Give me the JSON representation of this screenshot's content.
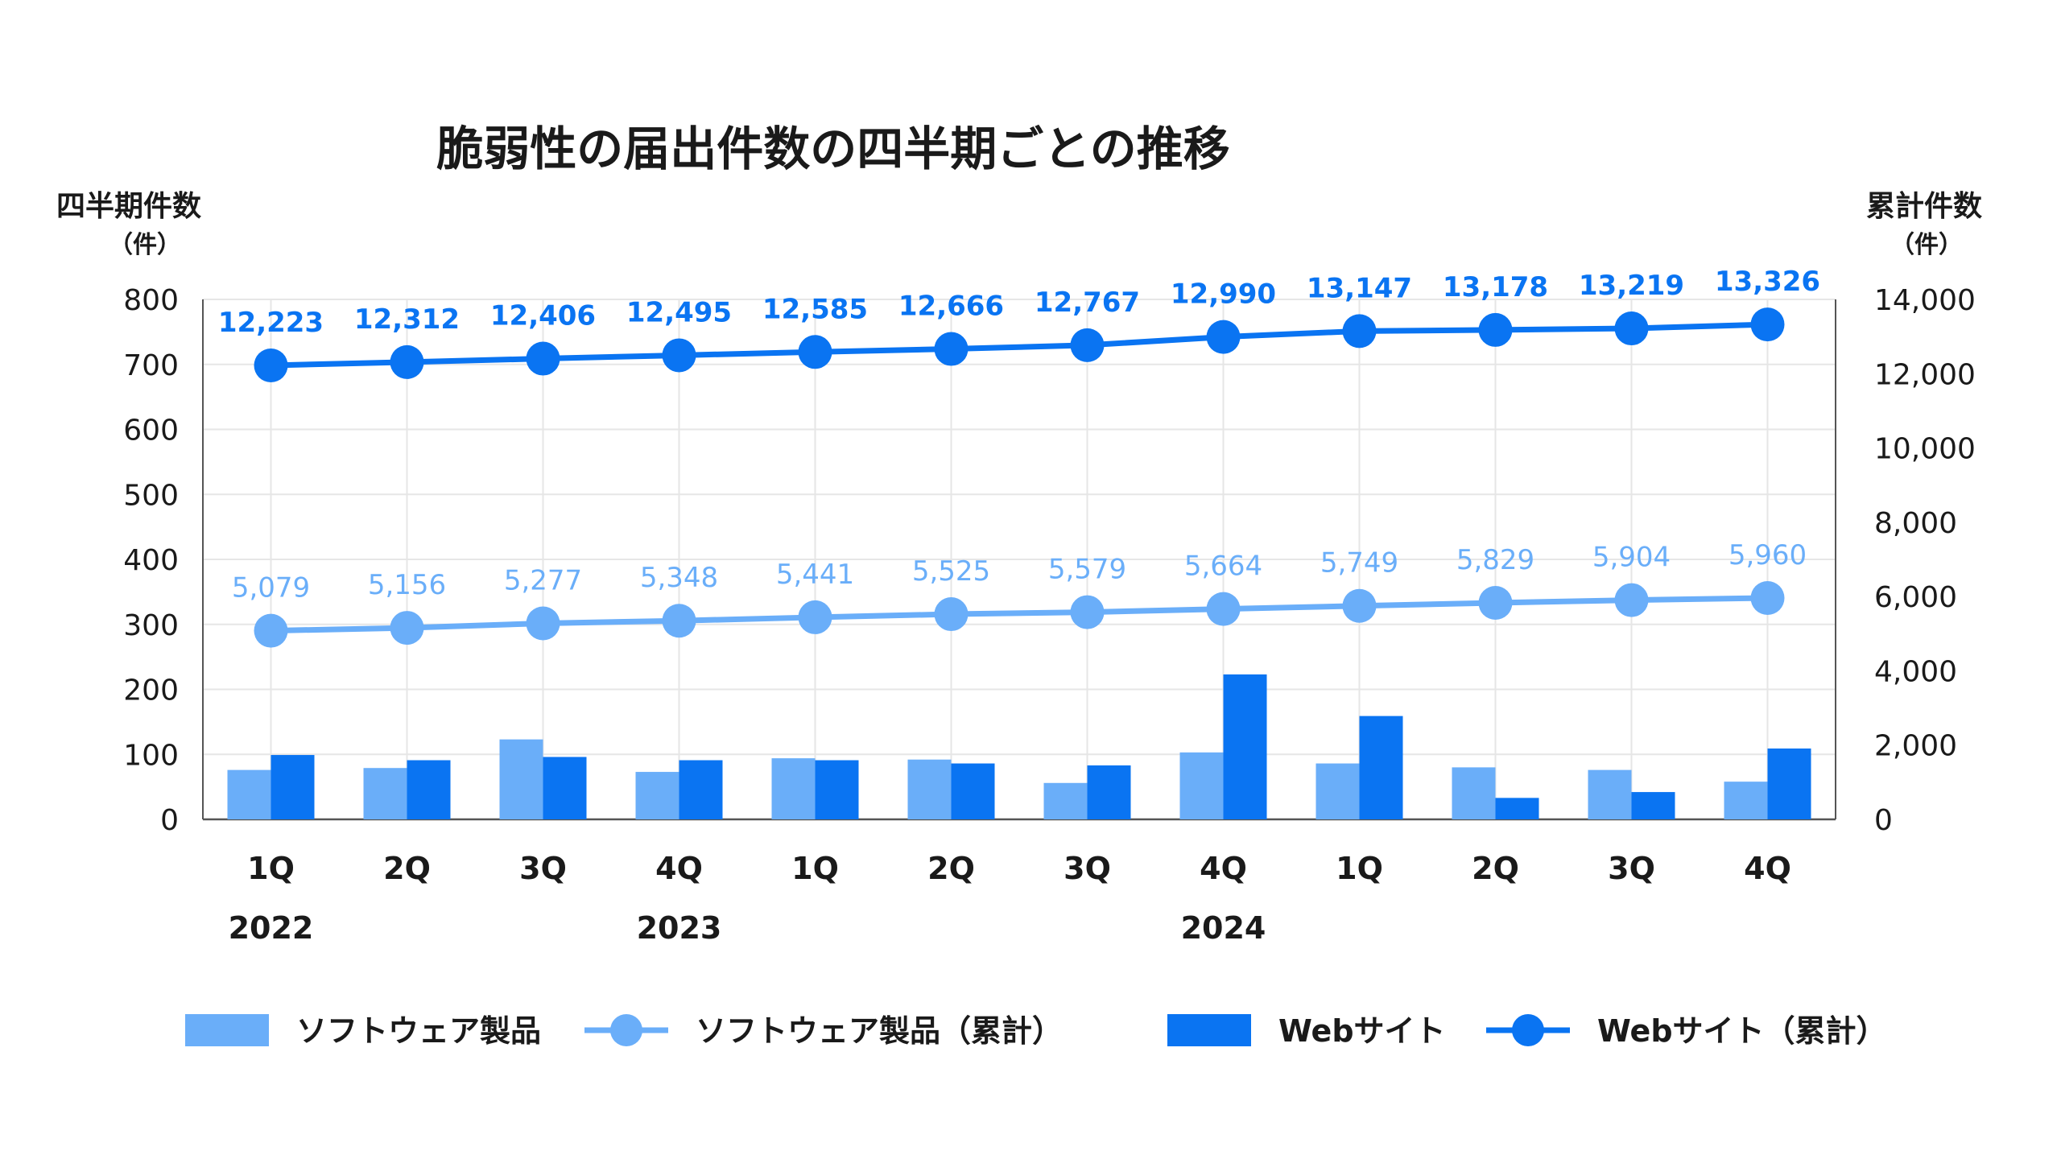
{
  "colors": {
    "software": "#6aaef9",
    "web": "#0a74f2",
    "grid": "#e6e6e6",
    "axis": "#555555",
    "text": "#1a1a1a"
  },
  "chart_data": {
    "type": "bar",
    "title": "脆弱性の届出件数の四半期ごとの推移",
    "ylabel": "四半期件数",
    "ylabel_unit": "（件）",
    "y2label": "累計件数",
    "y2label_unit": "（件）",
    "ylim": [
      0,
      800
    ],
    "y2lim": [
      0,
      14000
    ],
    "yticks": [
      "0",
      "100",
      "200",
      "300",
      "400",
      "500",
      "600",
      "700",
      "800"
    ],
    "y2ticks": [
      "0",
      "2,000",
      "4,000",
      "6,000",
      "8,000",
      "10,000",
      "12,000",
      "14,000"
    ],
    "categories": [
      "1Q",
      "2Q",
      "3Q",
      "4Q",
      "1Q",
      "2Q",
      "3Q",
      "4Q",
      "1Q",
      "2Q",
      "3Q",
      "4Q"
    ],
    "years": [
      {
        "label": "2022",
        "category_index": 0
      },
      {
        "label": "2023",
        "category_index": 3
      },
      {
        "label": "2024",
        "category_index": 7
      }
    ],
    "series": [
      {
        "name": "ソフトウェア製品",
        "type": "bar",
        "axis": "left",
        "color": "#6aaef9",
        "values": [
          76,
          79,
          123,
          73,
          94,
          92,
          56,
          103,
          86,
          80,
          76,
          58
        ]
      },
      {
        "name": "Webサイト",
        "type": "bar",
        "axis": "left",
        "color": "#0a74f2",
        "values": [
          99,
          91,
          96,
          91,
          91,
          86,
          83,
          223,
          159,
          33,
          42,
          109
        ]
      },
      {
        "name": "ソフトウェア製品（累計）",
        "type": "line",
        "axis": "right",
        "color": "#6aaef9",
        "values": [
          5079,
          5156,
          5277,
          5348,
          5441,
          5525,
          5579,
          5664,
          5749,
          5829,
          5904,
          5960
        ],
        "labels": [
          "5,079",
          "5,156",
          "5,277",
          "5,348",
          "5,441",
          "5,525",
          "5,579",
          "5,664",
          "5,749",
          "5,829",
          "5,904",
          "5,960"
        ]
      },
      {
        "name": "Webサイト（累計）",
        "type": "line",
        "axis": "right",
        "color": "#0a74f2",
        "values": [
          12223,
          12312,
          12406,
          12495,
          12585,
          12666,
          12767,
          12990,
          13147,
          13178,
          13219,
          13326
        ],
        "labels": [
          "12,223",
          "12,312",
          "12,406",
          "12,495",
          "12,585",
          "12,666",
          "12,767",
          "12,990",
          "13,147",
          "13,178",
          "13,219",
          "13,326"
        ]
      }
    ],
    "grid": true,
    "legend_position": "bottom"
  }
}
